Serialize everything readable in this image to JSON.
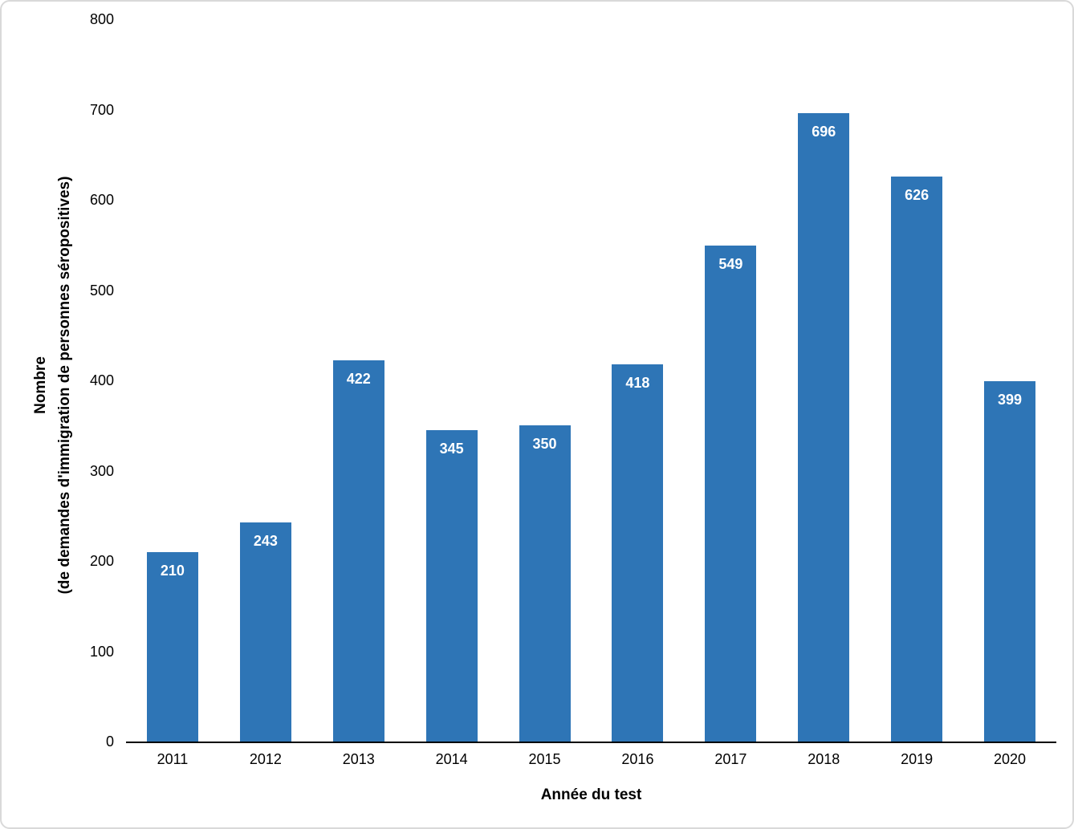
{
  "chart_data": {
    "type": "bar",
    "categories": [
      "2011",
      "2012",
      "2013",
      "2014",
      "2015",
      "2016",
      "2017",
      "2018",
      "2019",
      "2020"
    ],
    "values": [
      210,
      243,
      422,
      345,
      350,
      418,
      549,
      696,
      626,
      399
    ],
    "title": "",
    "xlabel": "Année du test",
    "ylabel_line1": "Nombre",
    "ylabel_line2": "(de demandes d'immigration de personnes séropositives)",
    "ylim": [
      0,
      800
    ],
    "yticks": [
      0,
      100,
      200,
      300,
      400,
      500,
      600,
      700,
      800
    ],
    "grid": false,
    "legend": false,
    "colors": {
      "bar": "#2E75B6",
      "bar_value_label": "#FFFFFF",
      "axis_line": "#000000",
      "text": "#000000",
      "background": "#FFFFFF",
      "frame_border": "#D9D9D9"
    }
  }
}
